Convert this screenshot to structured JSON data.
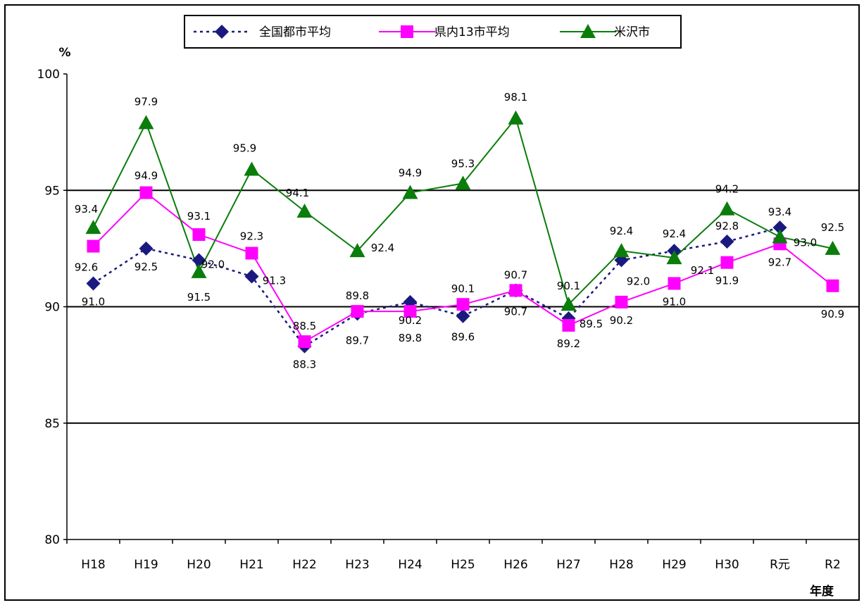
{
  "chart_data": {
    "type": "line",
    "x_unit": "年度",
    "y_unit": "%",
    "ylim": [
      80,
      100
    ],
    "yticks": [
      80,
      85,
      90,
      95,
      100
    ],
    "grid": "horizontal lines at 85, 90, 95",
    "legend_position": "top",
    "categories": [
      "H18",
      "H19",
      "H20",
      "H21",
      "H22",
      "H23",
      "H24",
      "H25",
      "H26",
      "H27",
      "H28",
      "H29",
      "H30",
      "R元",
      "R2"
    ],
    "series": [
      {
        "name": "全国都市平均",
        "color": "#1a1a7e",
        "line": "dotted",
        "marker": "diamond",
        "values": [
          91.0,
          92.5,
          92.0,
          91.3,
          88.3,
          89.7,
          90.2,
          89.6,
          90.7,
          89.5,
          92.0,
          92.4,
          92.8,
          93.4,
          null
        ],
        "labels": [
          "91.0",
          "92.5",
          "92.0",
          "91.3",
          "88.3",
          "89.7",
          "90.2",
          "89.6",
          "90.7",
          "89.5",
          "92.0",
          "92.4",
          "92.8",
          "93.4",
          ""
        ]
      },
      {
        "name": "県内13市平均",
        "color": "#ff00ff",
        "line": "solid",
        "marker": "square",
        "values": [
          92.6,
          94.9,
          93.1,
          92.3,
          88.5,
          89.8,
          89.8,
          90.1,
          90.7,
          89.2,
          90.2,
          91.0,
          91.9,
          92.7,
          90.9
        ],
        "labels": [
          "92.6",
          "94.9",
          "93.1",
          "92.3",
          "88.5",
          "89.8",
          "89.8",
          "90.1",
          "90.7",
          "89.2",
          "90.2",
          "91.0",
          "91.9",
          "92.7",
          "90.9"
        ]
      },
      {
        "name": "米沢市",
        "color": "#0a7d0a",
        "line": "solid",
        "marker": "triangle",
        "values": [
          93.4,
          97.9,
          91.5,
          95.9,
          94.1,
          92.4,
          94.9,
          95.3,
          98.1,
          90.1,
          92.4,
          92.1,
          94.2,
          93.0,
          92.5
        ],
        "labels": [
          "93.4",
          "97.9",
          "91.5",
          "95.9",
          "94.1",
          "92.4",
          "94.9",
          "95.3",
          "98.1",
          "90.1",
          "92.4",
          "92.1",
          "94.2",
          "93.0",
          "92.5"
        ]
      }
    ]
  }
}
